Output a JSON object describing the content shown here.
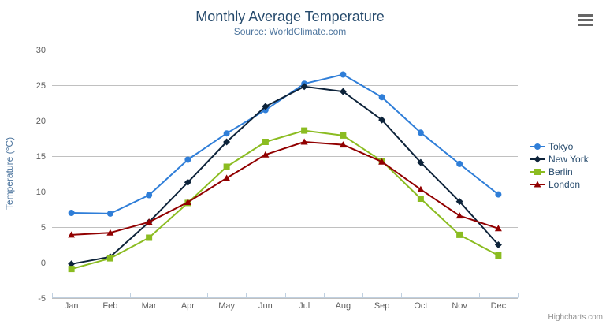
{
  "chart_data": {
    "type": "line",
    "title": "Monthly Average Temperature",
    "subtitle": "Source: WorldClimate.com",
    "categories": [
      "Jan",
      "Feb",
      "Mar",
      "Apr",
      "May",
      "Jun",
      "Jul",
      "Aug",
      "Sep",
      "Oct",
      "Nov",
      "Dec"
    ],
    "series": [
      {
        "name": "Tokyo",
        "color": "#2f7ed8",
        "marker": "circle",
        "values": [
          7.0,
          6.9,
          9.5,
          14.5,
          18.2,
          21.5,
          25.2,
          26.5,
          23.3,
          18.3,
          13.9,
          9.6
        ]
      },
      {
        "name": "New York",
        "color": "#0d233a",
        "marker": "diamond",
        "values": [
          -0.2,
          0.8,
          5.7,
          11.3,
          17.0,
          22.0,
          24.8,
          24.1,
          20.1,
          14.1,
          8.6,
          2.5
        ]
      },
      {
        "name": "Berlin",
        "color": "#8bbc21",
        "marker": "square",
        "values": [
          -0.9,
          0.6,
          3.5,
          8.4,
          13.5,
          17.0,
          18.6,
          17.9,
          14.3,
          9.0,
          3.9,
          1.0
        ]
      },
      {
        "name": "London",
        "color": "#910000",
        "marker": "triangle",
        "values": [
          3.9,
          4.2,
          5.7,
          8.5,
          11.9,
          15.2,
          17.0,
          16.6,
          14.2,
          10.3,
          6.6,
          4.8
        ]
      }
    ],
    "xlabel": "",
    "ylabel": "Temperature (°C)",
    "ylim": [
      -5,
      30
    ],
    "yticks": [
      -5,
      0,
      5,
      10,
      15,
      20,
      25,
      30
    ],
    "grid": true,
    "legend_position": "right-middle"
  },
  "colors": {
    "grid": "#c0c0c0",
    "axis_line": "#c0d0e0",
    "tick": "#c0d0e0",
    "burger_icon": "#666666"
  },
  "icons": {
    "context_menu": "hamburger-menu-icon"
  },
  "credits": "Highcharts.com"
}
